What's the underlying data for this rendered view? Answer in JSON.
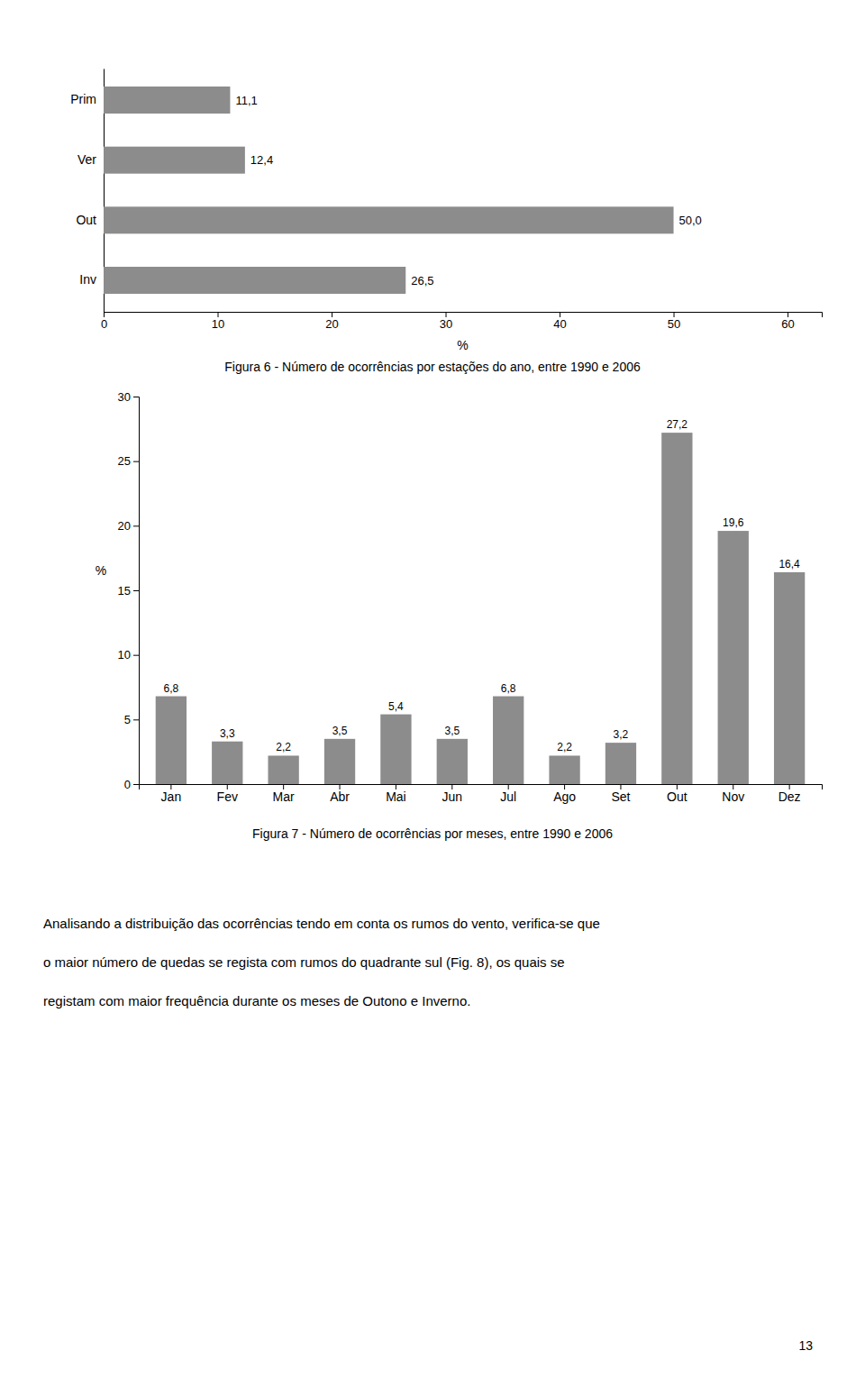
{
  "chart_data": [
    {
      "type": "bar",
      "orientation": "horizontal",
      "title": "Figura 6 - Número de ocorrências por estações do ano, entre 1990 e 2006",
      "categories": [
        "Prim",
        "Ver",
        "Out",
        "Inv"
      ],
      "values": [
        11.1,
        12.4,
        50.0,
        26.5
      ],
      "value_labels": [
        "11,1",
        "12,4",
        "50,0",
        "26,5"
      ],
      "data_labels": true,
      "color": "#8c8c8c",
      "xlabel": "%",
      "xlim": [
        0,
        63
      ],
      "xticks": [
        0,
        10,
        20,
        30,
        40,
        50,
        60
      ]
    },
    {
      "type": "bar",
      "title": "Figura 7 - Número de ocorrências por meses, entre 1990 e 2006",
      "categories": [
        "Jan",
        "Fev",
        "Mar",
        "Abr",
        "Mai",
        "Jun",
        "Jul",
        "Ago",
        "Set",
        "Out",
        "Nov",
        "Dez"
      ],
      "values": [
        6.8,
        3.3,
        2.2,
        3.5,
        5.4,
        3.5,
        6.8,
        2.2,
        3.2,
        27.2,
        19.6,
        16.4
      ],
      "value_labels": [
        "6,8",
        "3,3",
        "2,2",
        "3,5",
        "5,4",
        "3,5",
        "6,8",
        "2,2",
        "3,2",
        "27,2",
        "19,6",
        "16,4"
      ],
      "data_labels": true,
      "color": "#8c8c8c",
      "ylabel": "%",
      "ylim": [
        0,
        30
      ],
      "yticks": [
        0,
        5,
        10,
        15,
        20,
        25,
        30
      ]
    }
  ],
  "paragraph_lines": [
    "Analisando a distribuição das ocorrências tendo em conta os rumos do vento, verifica-se que",
    "o maior número de quedas se regista com rumos do quadrante sul (Fig. 8), os quais se",
    "registam com maior frequência durante os meses de Outono e Inverno."
  ],
  "page_number": "13"
}
